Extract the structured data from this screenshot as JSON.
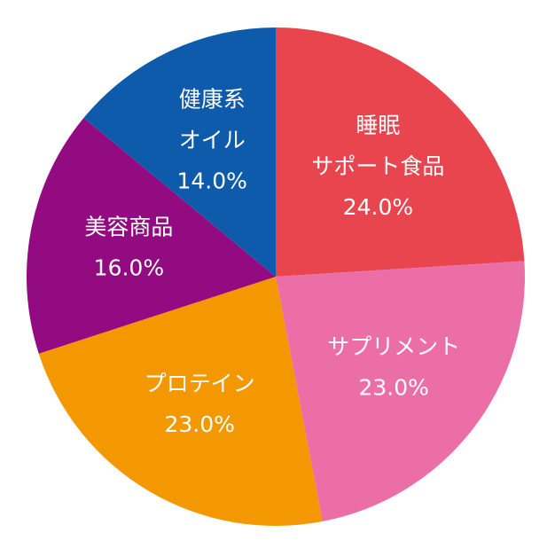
{
  "chart_data": {
    "type": "pie",
    "categories": [
      [
        "睡眠",
        "サポート食品"
      ],
      [
        "サプリメント"
      ],
      [
        "プロテイン"
      ],
      [
        "美容商品"
      ],
      [
        "健康系",
        "オイル"
      ]
    ],
    "values": [
      24.0,
      23.0,
      23.0,
      16.0,
      14.0
    ],
    "value_labels": [
      "24.0%",
      "23.0%",
      "23.0%",
      "16.0%",
      "14.0%"
    ],
    "colors": [
      "#e8454f",
      "#ec6ea6",
      "#f39800",
      "#930b80",
      "#0f5bab"
    ]
  }
}
